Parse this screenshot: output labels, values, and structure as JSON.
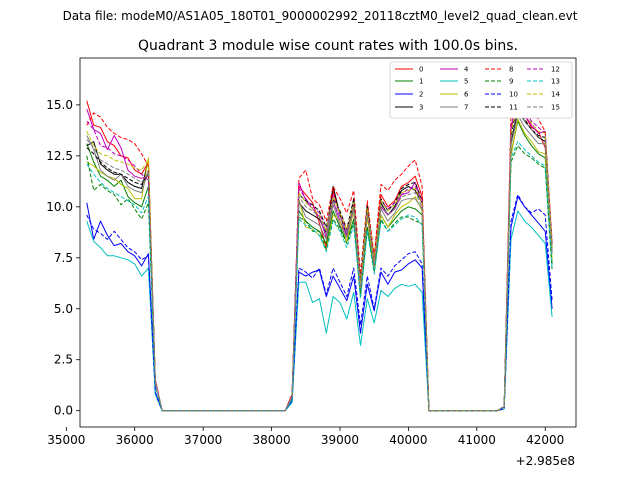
{
  "chart_data": {
    "type": "line",
    "suptitle": "Data file: modeM0/AS1A05_180T01_9000002992_20118cztM0_level2_quad_clean.evt",
    "title": "Quadrant 3 module wise count rates with 100.0s bins.",
    "xlabel": "",
    "ylabel": "",
    "x_offset_label": "+2.985e8",
    "xlim": [
      35200,
      42450
    ],
    "ylim": [
      -0.8,
      17.3
    ],
    "xticks": [
      35000,
      36000,
      37000,
      38000,
      39000,
      40000,
      41000,
      42000
    ],
    "yticks": [
      0.0,
      2.5,
      5.0,
      7.5,
      10.0,
      12.5,
      15.0
    ],
    "xtick_labels": [
      "35000",
      "36000",
      "37000",
      "38000",
      "39000",
      "40000",
      "41000",
      "42000"
    ],
    "ytick_labels": [
      "0.0",
      "2.5",
      "5.0",
      "7.5",
      "10.0",
      "12.5",
      "15.0"
    ],
    "legend_position": "top-right",
    "bins": {
      "seg1": [
        35300,
        35400,
        35500,
        35600,
        35700,
        35800,
        35900,
        36000,
        36100,
        36200,
        36300
      ],
      "seg2": [
        38300,
        38400,
        38500,
        38600,
        38700,
        38800,
        38900,
        39000,
        39100,
        39200,
        39300,
        39400,
        39500,
        39600,
        39700,
        39800,
        39900,
        40000,
        40100,
        40200
      ],
      "seg3": [
        41400,
        41500,
        41600,
        41700,
        41800,
        41900,
        42000,
        42100
      ]
    },
    "x": [
      35300,
      35400,
      35500,
      35600,
      35700,
      35800,
      35900,
      36000,
      36100,
      36200,
      36300,
      36400,
      36500,
      36600,
      36700,
      36800,
      36900,
      37000,
      37100,
      37200,
      37300,
      37400,
      37500,
      37600,
      37700,
      37800,
      37900,
      38000,
      38100,
      38200,
      38300,
      38400,
      38500,
      38600,
      38700,
      38800,
      38900,
      39000,
      39100,
      39200,
      39300,
      39400,
      39500,
      39600,
      39700,
      39800,
      39900,
      40000,
      40100,
      40200,
      40300,
      40400,
      40500,
      40600,
      40700,
      40800,
      40900,
      41000,
      41100,
      41200,
      41300,
      41400,
      41500,
      41600,
      41700,
      41800,
      41900,
      42000,
      42100
    ],
    "series": [
      {
        "name": "0",
        "color": "#ff0000",
        "dash": "solid",
        "levels": {
          "seg1": [
            15.2,
            14.0,
            13.9,
            13.2,
            13.0,
            12.5,
            12.4,
            11.8,
            11.6,
            12.2,
            1.5
          ],
          "seg2": [
            0.8,
            11.0,
            10.6,
            10.2,
            9.2,
            8.0,
            10.8,
            9.6,
            8.9,
            10.1,
            6.2,
            9.9,
            7.5,
            10.6,
            10.0,
            10.3,
            11.0,
            11.2,
            11.5,
            10.5
          ],
          "seg3": [
            0.2,
            14.0,
            15.0,
            14.5,
            13.9,
            13.7,
            12.9,
            7.8
          ]
        }
      },
      {
        "name": "1",
        "color": "#008000",
        "dash": "solid",
        "levels": {
          "seg1": [
            13.1,
            12.2,
            11.5,
            11.3,
            11.0,
            11.3,
            10.5,
            10.2,
            10.0,
            11.0,
            1.3
          ],
          "seg2": [
            0.6,
            9.8,
            9.3,
            9.0,
            8.8,
            8.2,
            9.8,
            9.0,
            8.3,
            9.4,
            5.6,
            9.0,
            6.9,
            9.6,
            9.0,
            9.4,
            9.8,
            10.0,
            9.9,
            9.6
          ],
          "seg3": [
            0.2,
            12.6,
            14.2,
            13.5,
            13.0,
            12.6,
            12.4,
            7.2
          ]
        }
      },
      {
        "name": "2",
        "color": "#0000ff",
        "dash": "solid",
        "levels": {
          "seg1": [
            10.2,
            8.4,
            9.3,
            8.6,
            8.1,
            8.2,
            7.8,
            7.6,
            7.1,
            7.7,
            0.9
          ],
          "seg2": [
            0.5,
            6.8,
            6.6,
            6.8,
            6.9,
            5.6,
            6.6,
            6.0,
            5.4,
            6.6,
            3.8,
            6.2,
            4.9,
            6.8,
            6.2,
            6.8,
            6.9,
            7.2,
            7.4,
            7.0
          ],
          "seg3": [
            0.1,
            9.0,
            10.5,
            10.0,
            9.6,
            9.2,
            8.8,
            5.0
          ]
        }
      },
      {
        "name": "3",
        "color": "#000000",
        "dash": "solid",
        "levels": {
          "seg1": [
            13.0,
            13.2,
            12.1,
            11.8,
            11.6,
            11.6,
            11.2,
            11.0,
            10.9,
            12.3,
            1.4
          ],
          "seg2": [
            0.7,
            10.2,
            9.8,
            9.6,
            9.4,
            8.7,
            11.0,
            9.6,
            8.6,
            10.3,
            6.0,
            10.1,
            7.2,
            10.2,
            9.6,
            10.0,
            10.8,
            11.0,
            10.8,
            10.2
          ],
          "seg3": [
            0.2,
            13.2,
            14.7,
            14.2,
            13.8,
            13.4,
            13.2,
            8.0
          ]
        }
      },
      {
        "name": "4",
        "color": "#bf00bf",
        "dash": "solid",
        "levels": {
          "seg1": [
            14.8,
            13.8,
            13.6,
            12.8,
            13.5,
            12.9,
            11.8,
            11.5,
            11.4,
            11.5,
            1.5
          ],
          "seg2": [
            0.7,
            11.2,
            10.3,
            9.9,
            9.5,
            8.5,
            10.3,
            9.3,
            8.6,
            9.8,
            5.9,
            9.6,
            7.3,
            10.0,
            9.6,
            9.9,
            10.6,
            10.7,
            11.2,
            10.2
          ],
          "seg3": [
            0.2,
            13.8,
            15.2,
            14.5,
            14.0,
            13.6,
            13.7,
            7.9
          ]
        }
      },
      {
        "name": "5",
        "color": "#00bfbf",
        "dash": "solid",
        "levels": {
          "seg1": [
            9.3,
            8.3,
            8.0,
            7.6,
            7.6,
            7.5,
            7.4,
            7.2,
            6.6,
            7.0,
            0.8
          ],
          "seg2": [
            0.4,
            6.3,
            6.3,
            5.3,
            5.5,
            3.8,
            5.6,
            5.3,
            4.5,
            5.8,
            3.2,
            5.5,
            4.3,
            5.9,
            5.6,
            6.0,
            6.2,
            6.1,
            6.2,
            5.8
          ],
          "seg3": [
            0.1,
            8.4,
            9.8,
            9.3,
            9.0,
            8.6,
            8.2,
            4.6
          ]
        }
      },
      {
        "name": "6",
        "color": "#bfbf00",
        "dash": "solid",
        "levels": {
          "seg1": [
            12.2,
            12.0,
            11.7,
            11.5,
            11.4,
            11.1,
            10.9,
            10.4,
            10.4,
            12.4,
            1.4
          ],
          "seg2": [
            0.6,
            10.4,
            9.0,
            8.9,
            8.6,
            7.9,
            9.6,
            9.3,
            8.3,
            9.8,
            5.8,
            9.5,
            7.0,
            9.6,
            9.0,
            9.6,
            10.0,
            10.2,
            10.5,
            9.8
          ],
          "seg3": [
            0.2,
            12.5,
            14.3,
            13.6,
            13.2,
            12.7,
            12.6,
            7.4
          ]
        }
      },
      {
        "name": "7",
        "color": "#808080",
        "dash": "solid",
        "levels": {
          "seg1": [
            13.5,
            12.8,
            11.8,
            11.5,
            11.3,
            11.6,
            11.0,
            10.8,
            10.7,
            11.8,
            1.4
          ],
          "seg2": [
            0.6,
            10.3,
            9.5,
            9.3,
            9.1,
            8.4,
            10.1,
            9.1,
            8.5,
            9.9,
            5.9,
            9.7,
            7.1,
            9.9,
            9.3,
            9.7,
            10.3,
            10.4,
            10.4,
            9.9
          ],
          "seg3": [
            0.2,
            13.0,
            14.5,
            13.9,
            13.5,
            13.1,
            13.1,
            7.7
          ]
        }
      },
      {
        "name": "8",
        "color": "#ff0000",
        "dash": "dashed",
        "levels": {
          "seg1": [
            14.0,
            14.6,
            14.4,
            13.9,
            13.6,
            13.4,
            13.3,
            13.1,
            12.6,
            12.0,
            1.5
          ],
          "seg2": [
            0.8,
            11.4,
            11.8,
            10.4,
            10.1,
            9.3,
            11.0,
            10.4,
            9.7,
            10.8,
            6.7,
            10.3,
            7.6,
            11.1,
            10.8,
            11.3,
            11.6,
            12.0,
            12.3,
            11.0
          ],
          "seg3": [
            0.2,
            14.6,
            16.4,
            15.2,
            14.8,
            14.3,
            13.7,
            8.3
          ]
        }
      },
      {
        "name": "9",
        "color": "#008000",
        "dash": "dashed",
        "levels": {
          "seg1": [
            12.5,
            10.8,
            11.1,
            10.8,
            10.6,
            10.1,
            10.4,
            9.9,
            9.4,
            10.2,
            1.3
          ],
          "seg2": [
            0.6,
            9.5,
            9.3,
            8.8,
            8.8,
            7.9,
            9.4,
            8.9,
            8.2,
            9.2,
            5.6,
            8.9,
            6.8,
            9.4,
            8.8,
            9.2,
            9.5,
            9.5,
            9.3,
            9.2
          ],
          "seg3": [
            0.2,
            12.2,
            13.0,
            12.6,
            12.4,
            12.1,
            11.9,
            6.9
          ]
        }
      },
      {
        "name": "10",
        "color": "#0000ff",
        "dash": "dashed",
        "levels": {
          "seg1": [
            9.6,
            8.9,
            8.7,
            8.4,
            8.8,
            8.4,
            8.0,
            7.8,
            7.4,
            7.6,
            0.9
          ],
          "seg2": [
            0.5,
            7.0,
            6.8,
            6.5,
            7.0,
            5.7,
            7.0,
            6.3,
            5.6,
            7.0,
            4.2,
            6.6,
            5.0,
            7.0,
            6.6,
            7.1,
            7.4,
            7.7,
            7.8,
            7.2
          ],
          "seg3": [
            0.1,
            9.3,
            10.6,
            10.0,
            9.7,
            9.9,
            9.6,
            5.4
          ]
        }
      },
      {
        "name": "11",
        "color": "#000000",
        "dash": "dashed",
        "levels": {
          "seg1": [
            12.9,
            12.6,
            12.2,
            11.9,
            11.7,
            11.6,
            11.4,
            11.2,
            11.1,
            11.6,
            1.4
          ],
          "seg2": [
            0.7,
            10.6,
            10.3,
            10.1,
            9.8,
            9.0,
            10.4,
            9.8,
            8.9,
            10.4,
            6.3,
            10.0,
            7.4,
            10.4,
            9.8,
            10.2,
            10.9,
            11.1,
            11.2,
            10.3
          ],
          "seg3": [
            0.2,
            13.5,
            15.0,
            14.3,
            13.8,
            13.5,
            13.4,
            8.0
          ]
        }
      },
      {
        "name": "12",
        "color": "#bf00bf",
        "dash": "dashed",
        "levels": {
          "seg1": [
            14.2,
            13.8,
            13.0,
            12.9,
            12.6,
            12.5,
            12.3,
            12.0,
            11.6,
            11.3,
            1.4
          ],
          "seg2": [
            0.7,
            10.9,
            10.4,
            10.0,
            9.7,
            8.8,
            10.6,
            9.6,
            8.8,
            10.1,
            6.1,
            9.8,
            7.3,
            10.3,
            9.9,
            10.2,
            10.6,
            10.9,
            11.0,
            10.3
          ],
          "seg3": [
            0.2,
            13.9,
            15.5,
            14.7,
            14.2,
            13.9,
            13.6,
            8.1
          ]
        }
      },
      {
        "name": "13",
        "color": "#00bfbf",
        "dash": "dashed",
        "levels": {
          "seg1": [
            12.1,
            11.6,
            11.2,
            10.9,
            10.7,
            10.5,
            10.3,
            10.1,
            9.7,
            10.5,
            1.3
          ],
          "seg2": [
            0.6,
            9.4,
            9.1,
            8.9,
            8.6,
            7.8,
            9.3,
            8.8,
            8.0,
            9.1,
            5.5,
            8.8,
            6.7,
            9.3,
            8.8,
            9.1,
            9.4,
            9.6,
            9.5,
            9.1
          ],
          "seg3": [
            0.2,
            12.4,
            13.2,
            12.8,
            12.5,
            12.2,
            12.0,
            7.0
          ]
        }
      },
      {
        "name": "14",
        "color": "#bfbf00",
        "dash": "dashed",
        "levels": {
          "seg1": [
            13.7,
            13.0,
            12.6,
            12.5,
            12.3,
            12.2,
            12.1,
            11.9,
            11.8,
            12.3,
            1.4
          ],
          "seg2": [
            0.7,
            10.7,
            10.2,
            9.9,
            9.6,
            8.8,
            10.5,
            9.7,
            8.9,
            10.2,
            6.2,
            9.9,
            7.4,
            10.3,
            9.8,
            10.1,
            10.7,
            10.8,
            10.9,
            10.2
          ],
          "seg3": [
            0.2,
            13.6,
            15.3,
            14.6,
            14.1,
            13.7,
            13.6,
            8.0
          ]
        }
      },
      {
        "name": "15",
        "color": "#808080",
        "dash": "dashed",
        "levels": {
          "seg1": [
            13.3,
            12.9,
            12.3,
            12.1,
            11.9,
            11.8,
            11.6,
            11.4,
            11.2,
            11.7,
            1.4
          ],
          "seg2": [
            0.7,
            10.5,
            10.0,
            9.8,
            9.5,
            8.7,
            10.3,
            9.5,
            8.7,
            10.0,
            6.0,
            9.7,
            7.2,
            10.1,
            9.6,
            9.9,
            10.5,
            10.6,
            10.7,
            10.0
          ],
          "seg3": [
            0.2,
            13.3,
            14.9,
            14.2,
            13.8,
            13.4,
            13.3,
            7.8
          ]
        }
      }
    ]
  }
}
